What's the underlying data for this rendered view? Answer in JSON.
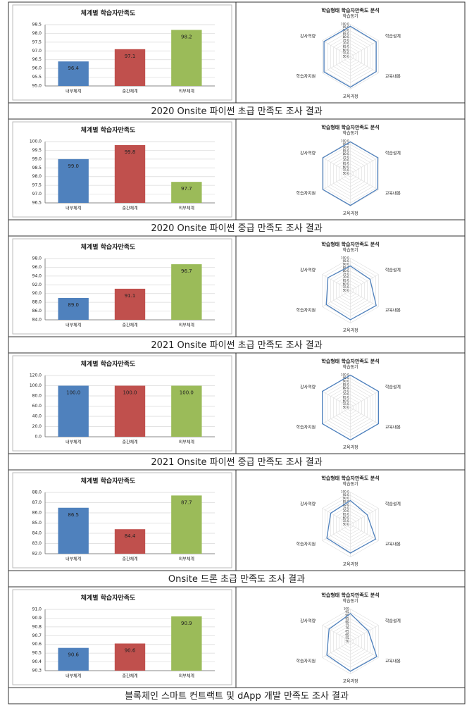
{
  "chart_data": [
    {
      "type": "bar",
      "title": "체계별 학습자만족도",
      "categories": [
        "내부체계",
        "중간체계",
        "외부체계"
      ],
      "values": [
        96.4,
        97.1,
        98.2
      ],
      "value_labels": [
        "96.4",
        "97.1",
        "98.2"
      ],
      "colors": [
        "#4f81bd",
        "#c0504d",
        "#9bbb59"
      ],
      "ylim": [
        95,
        98.5
      ],
      "yticks": [
        {
          "value": 95,
          "label": "95.0"
        },
        {
          "value": 95.5,
          "label": "95.5"
        },
        {
          "value": 96,
          "label": "96.0"
        },
        {
          "value": 96.5,
          "label": "96.5"
        },
        {
          "value": 97,
          "label": "97.0"
        },
        {
          "value": 97.5,
          "label": "97.5"
        },
        {
          "value": 98,
          "label": "98.0"
        },
        {
          "value": 98.5,
          "label": "98.5"
        }
      ],
      "grid": true
    },
    {
      "type": "radar",
      "title": "학습형태 학습자만족도 분석",
      "categories": [
        "학습동기",
        "학습설계",
        "교육내용",
        "교육과정",
        "학습자지원",
        "강사역량"
      ],
      "values": [
        97,
        96,
        96,
        97,
        97,
        97
      ],
      "color": "#4f81bd",
      "rlim": [
        50,
        100
      ],
      "rticks": [
        {
          "value": 100,
          "label": "100.0"
        },
        {
          "value": 95,
          "label": "95.0"
        },
        {
          "value": 90,
          "label": "90.0"
        },
        {
          "value": 85,
          "label": "85.0"
        },
        {
          "value": 80,
          "label": "80.0"
        },
        {
          "value": 75,
          "label": "75.0"
        },
        {
          "value": 70,
          "label": "70.0"
        },
        {
          "value": 65,
          "label": "65.0"
        },
        {
          "value": 60,
          "label": "60.0"
        },
        {
          "value": 55,
          "label": "55.0"
        },
        {
          "value": 50,
          "label": "50.0"
        }
      ]
    },
    {
      "type": "bar",
      "title": "체계별 학습자만족도",
      "categories": [
        "내부체계",
        "중간체계",
        "외부체계"
      ],
      "values": [
        99.0,
        99.8,
        97.7
      ],
      "value_labels": [
        "99.0",
        "99.8",
        "97.7"
      ],
      "colors": [
        "#4f81bd",
        "#c0504d",
        "#9bbb59"
      ],
      "ylim": [
        96.5,
        100
      ],
      "yticks": [
        {
          "value": 96.5,
          "label": "96.5"
        },
        {
          "value": 97,
          "label": "97.0"
        },
        {
          "value": 97.5,
          "label": "97.5"
        },
        {
          "value": 98,
          "label": "98.0"
        },
        {
          "value": 98.5,
          "label": "98.5"
        },
        {
          "value": 99,
          "label": "99.0"
        },
        {
          "value": 99.5,
          "label": "99.5"
        },
        {
          "value": 100,
          "label": "100.0"
        }
      ],
      "grid": true
    },
    {
      "type": "radar",
      "title": "학습형태 학습자만족도 분석",
      "categories": [
        "학습동기",
        "학습설계",
        "교육내용",
        "교육과정",
        "학습자지원",
        "강사역량"
      ],
      "values": [
        99,
        99,
        98,
        99,
        99,
        99
      ],
      "color": "#4f81bd",
      "rlim": [
        50,
        100
      ],
      "rticks": [
        {
          "value": 100,
          "label": "100.0"
        },
        {
          "value": 95,
          "label": "95.0"
        },
        {
          "value": 90,
          "label": "90.0"
        },
        {
          "value": 85,
          "label": "85.0"
        },
        {
          "value": 80,
          "label": "80.0"
        },
        {
          "value": 75,
          "label": "75.0"
        },
        {
          "value": 70,
          "label": "70.0"
        },
        {
          "value": 65,
          "label": "65.0"
        },
        {
          "value": 60,
          "label": "60.0"
        },
        {
          "value": 55,
          "label": "55.0"
        },
        {
          "value": 50,
          "label": "50.0"
        }
      ]
    },
    {
      "type": "bar",
      "title": "체계별 학습자만족도",
      "categories": [
        "내부체계",
        "중간체계",
        "외부체계"
      ],
      "values": [
        89.0,
        91.1,
        96.7
      ],
      "value_labels": [
        "89.0",
        "91.1",
        "96.7"
      ],
      "colors": [
        "#4f81bd",
        "#c0504d",
        "#9bbb59"
      ],
      "ylim": [
        84,
        98
      ],
      "yticks": [
        {
          "value": 84,
          "label": "84.0"
        },
        {
          "value": 86,
          "label": "86.0"
        },
        {
          "value": 88,
          "label": "88.0"
        },
        {
          "value": 90,
          "label": "90.0"
        },
        {
          "value": 92,
          "label": "92.0"
        },
        {
          "value": 94,
          "label": "94.0"
        },
        {
          "value": 96,
          "label": "96.0"
        },
        {
          "value": 98,
          "label": "98.0"
        }
      ],
      "grid": true
    },
    {
      "type": "radar",
      "title": "학습형태 학습자만족도 분석",
      "categories": [
        "학습동기",
        "학습설계",
        "교육내용",
        "교육과정",
        "학습자지원",
        "강사역량"
      ],
      "values": [
        88,
        85,
        96,
        95,
        93,
        90
      ],
      "color": "#4f81bd",
      "rlim": [
        50,
        100
      ],
      "rticks": [
        {
          "value": 100,
          "label": "100.0"
        },
        {
          "value": 95,
          "label": "95.0"
        },
        {
          "value": 90,
          "label": "90.0"
        },
        {
          "value": 85,
          "label": "85.0"
        },
        {
          "value": 80,
          "label": "80.0"
        },
        {
          "value": 75,
          "label": "75.0"
        },
        {
          "value": 70,
          "label": "70.0"
        },
        {
          "value": 65,
          "label": "65.0"
        },
        {
          "value": 60,
          "label": "60.0"
        },
        {
          "value": 55,
          "label": "55.0"
        },
        {
          "value": 50,
          "label": "50.0"
        }
      ]
    },
    {
      "type": "bar",
      "title": "체계별 학습자만족도",
      "categories": [
        "내부체계",
        "중간체계",
        "외부체계"
      ],
      "values": [
        100,
        100,
        100
      ],
      "value_labels": [
        "100.0",
        "100.0",
        "100.0"
      ],
      "colors": [
        "#4f81bd",
        "#c0504d",
        "#9bbb59"
      ],
      "ylim": [
        0,
        120
      ],
      "yticks": [
        {
          "value": 0,
          "label": "0.0"
        },
        {
          "value": 20,
          "label": "20.0"
        },
        {
          "value": 40,
          "label": "40.0"
        },
        {
          "value": 60,
          "label": "60.0"
        },
        {
          "value": 80,
          "label": "80.0"
        },
        {
          "value": 100,
          "label": "100.0"
        },
        {
          "value": 120,
          "label": "120.0"
        }
      ],
      "grid": true
    },
    {
      "type": "radar",
      "title": "학습형태 학습자만족도 분석",
      "categories": [
        "학습동기",
        "학습설계",
        "교육내용",
        "교육과정",
        "학습자지원",
        "강사역량"
      ],
      "values": [
        100,
        100,
        100,
        100,
        100,
        100
      ],
      "color": "#4f81bd",
      "rlim": [
        50,
        100
      ],
      "rticks": [
        {
          "value": 100,
          "label": "100.0"
        },
        {
          "value": 95,
          "label": "95.0"
        },
        {
          "value": 90,
          "label": "90.0"
        },
        {
          "value": 85,
          "label": "85.0"
        },
        {
          "value": 80,
          "label": "80.0"
        },
        {
          "value": 75,
          "label": "75.0"
        },
        {
          "value": 70,
          "label": "70.0"
        },
        {
          "value": 65,
          "label": "65.0"
        },
        {
          "value": 60,
          "label": "60.0"
        },
        {
          "value": 55,
          "label": "55.0"
        },
        {
          "value": 50,
          "label": "50.0"
        }
      ]
    },
    {
      "type": "bar",
      "title": "체계별 학습자만족도",
      "categories": [
        "내부체계",
        "중간체계",
        "외부체계"
      ],
      "values": [
        86.5,
        84.4,
        87.7
      ],
      "value_labels": [
        "86.5",
        "84.4",
        "87.7"
      ],
      "colors": [
        "#4f81bd",
        "#c0504d",
        "#9bbb59"
      ],
      "ylim": [
        82,
        88
      ],
      "yticks": [
        {
          "value": 82,
          "label": "82.0"
        },
        {
          "value": 83,
          "label": "83.0"
        },
        {
          "value": 84,
          "label": "84.0"
        },
        {
          "value": 85,
          "label": "85.0"
        },
        {
          "value": 86,
          "label": "86.0"
        },
        {
          "value": 87,
          "label": "87.0"
        },
        {
          "value": 88,
          "label": "88.0"
        }
      ],
      "grid": true
    },
    {
      "type": "radar",
      "title": "학습형태 학습자만족도 분석",
      "categories": [
        "학습동기",
        "학습설계",
        "교육내용",
        "교육과정",
        "학습자지원",
        "강사역량"
      ],
      "values": [
        87,
        80,
        95,
        94,
        92,
        85
      ],
      "color": "#4f81bd",
      "rlim": [
        50,
        100
      ],
      "rticks": [
        {
          "value": 100,
          "label": "100.0"
        },
        {
          "value": 95,
          "label": "95.0"
        },
        {
          "value": 90,
          "label": "90.0"
        },
        {
          "value": 85,
          "label": "85.0"
        },
        {
          "value": 80,
          "label": "80.0"
        },
        {
          "value": 75,
          "label": "75.0"
        },
        {
          "value": 70,
          "label": "70.0"
        },
        {
          "value": 65,
          "label": "65.0"
        },
        {
          "value": 60,
          "label": "60.0"
        },
        {
          "value": 55,
          "label": "55.0"
        },
        {
          "value": 50,
          "label": "50.0"
        }
      ]
    },
    {
      "type": "bar",
      "title": "체계별 학습자만족도",
      "categories": [
        "내부체계",
        "중간체계",
        "외부체계"
      ],
      "values": [
        90.56,
        90.61,
        90.92
      ],
      "value_labels": [
        "90.6",
        "90.6",
        "90.9"
      ],
      "colors": [
        "#4f81bd",
        "#c0504d",
        "#9bbb59"
      ],
      "ylim": [
        90.3,
        91.0
      ],
      "yticks": [
        {
          "value": 90.3,
          "label": "90.3"
        },
        {
          "value": 90.4,
          "label": "90.4"
        },
        {
          "value": 90.5,
          "label": "90.5"
        },
        {
          "value": 90.6,
          "label": "90.6"
        },
        {
          "value": 90.7,
          "label": "90.7"
        },
        {
          "value": 90.8,
          "label": "90.8"
        },
        {
          "value": 90.9,
          "label": "90.9"
        },
        {
          "value": 91.0,
          "label": "91.0"
        }
      ],
      "grid": true
    },
    {
      "type": "radar",
      "title": "학습형태 학습자만족도 분석",
      "categories": [
        "학습동기",
        "학습설계",
        "교육내용",
        "교육과정",
        "학습자지원",
        "강사역량"
      ],
      "values": [
        93,
        82,
        97,
        96,
        92,
        88
      ],
      "color": "#4f81bd",
      "rlim": [
        50,
        100
      ],
      "rticks": [
        100,
        95,
        90,
        85,
        80,
        75,
        70,
        65,
        60,
        55,
        50
      ]
    }
  ],
  "captions": [
    "2020 Onsite 파이썬 초급 만족도 조사 결과",
    "2020 Onsite 파이썬 중급 만족도 조사 결과",
    "2021 Onsite 파이썬 초급 만족도 조사 결과",
    "2021 Onsite 파이썬 중급 만족도 조사 결과",
    "Onsite 드론 초급 만족도 조사 결과",
    "블록체인 스마트 컨트랙트 및 dApp 개발 만족도 조사 결과"
  ]
}
